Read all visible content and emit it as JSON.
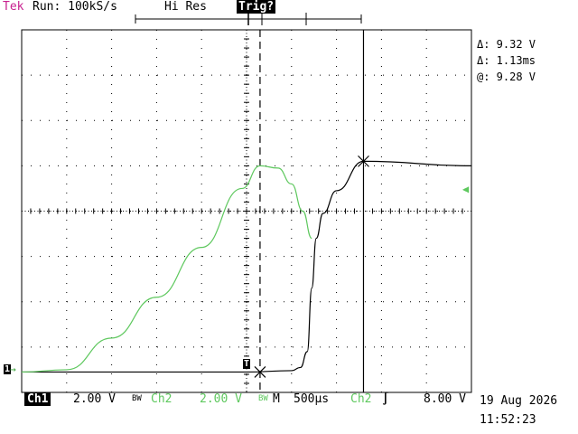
{
  "header": {
    "brand": "Tek",
    "run_status": "Run: 100kS/s",
    "acquisition_mode": "Hi Res",
    "trigger_status": "Trig?"
  },
  "cursor_readout": {
    "voltage_delta": "Δ: 9.32 V",
    "time_delta": "Δ: 1.13ms",
    "at_value": "@: 9.28 V"
  },
  "footer": {
    "ch1_label": "Ch1",
    "ch1_scale": "2.00 V",
    "ch1_bw": "BW",
    "ch2_label": "Ch2",
    "ch2_scale": "2.00 V",
    "ch2_bw": "BW",
    "timebase_label": "M",
    "timebase": "500µs",
    "trigger_source": "Ch2",
    "trigger_slope_icon": "rising-edge-icon",
    "trigger_level": "8.00 V"
  },
  "datetime": {
    "date": "19 Aug 2026",
    "time": "11:52:23"
  },
  "markers": {
    "ch1_ground": "1",
    "trigger_pos": "T"
  },
  "colors": {
    "brand": "#c8218f",
    "ch1": "#000000",
    "ch2": "#5ec85e",
    "grid": "#000000"
  },
  "chart_data": {
    "type": "line",
    "x_divisions": 10,
    "y_divisions": 8,
    "time_per_div": "500µs",
    "series": [
      {
        "name": "Ch1",
        "volts_per_div": 2.0,
        "x_div": [
          0,
          5.0,
          6.0,
          6.2,
          6.35,
          6.45,
          6.55,
          6.7,
          7.0,
          7.6,
          10.0
        ],
        "y_div": [
          0.45,
          0.45,
          0.48,
          0.55,
          0.9,
          2.3,
          3.4,
          3.95,
          4.45,
          5.1,
          5.0
        ]
      },
      {
        "name": "Ch2",
        "volts_per_div": 2.0,
        "x_div": [
          0,
          1.0,
          2.0,
          3.0,
          4.0,
          4.9,
          5.3,
          5.7,
          6.0,
          6.25,
          6.45
        ],
        "y_div": [
          0.45,
          0.5,
          1.2,
          2.1,
          3.2,
          4.5,
          5.0,
          4.95,
          4.6,
          4.0,
          3.4
        ]
      }
    ],
    "cursors": {
      "vertical_at_div": [
        5.3,
        7.6
      ],
      "cross_points_div": [
        [
          5.3,
          0.45
        ],
        [
          7.6,
          5.1
        ]
      ]
    },
    "trigger_position_div": 5.0,
    "grid": true
  }
}
